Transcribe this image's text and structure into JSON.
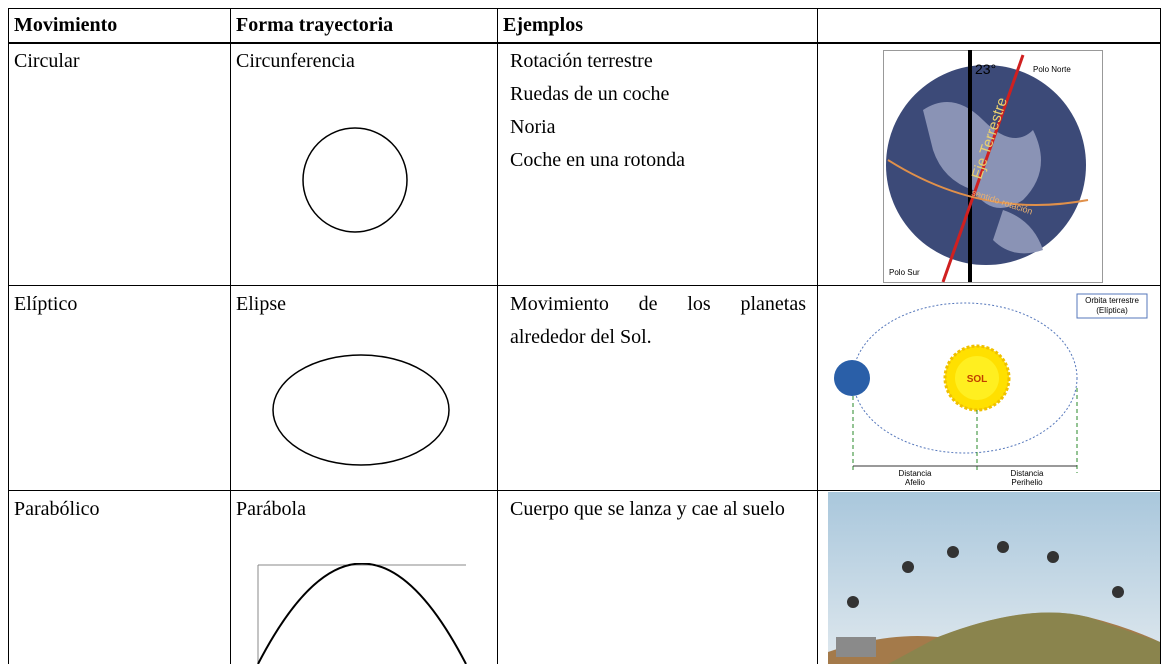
{
  "table": {
    "headers": [
      "Movimiento",
      "Forma trayectoria",
      "Ejemplos"
    ],
    "rows": [
      {
        "movement": "Circular",
        "shape": "Circunferencia",
        "examples": [
          "Rotación terrestre",
          "Ruedas de un coche",
          "Noria",
          "Coche en una rotonda"
        ]
      },
      {
        "movement": "Elíptico",
        "shape": "Elipse",
        "examples": [
          "Movimiento de los planetas alrededor del Sol."
        ]
      },
      {
        "movement": "Parabólico",
        "shape": "Parábola",
        "examples": [
          "Cuerpo que se lanza y cae al suelo"
        ]
      }
    ]
  },
  "images": [
    {
      "labels": [
        "23°",
        "Polo Norte",
        "Eje Terrestre",
        "sentido rotación",
        "Polo Sur"
      ]
    },
    {
      "labels": [
        "Orbita terrestre",
        "(Elíptica)",
        "SOL",
        "Distancia",
        "Afelio",
        "Distancia",
        "Perihelio"
      ]
    }
  ]
}
